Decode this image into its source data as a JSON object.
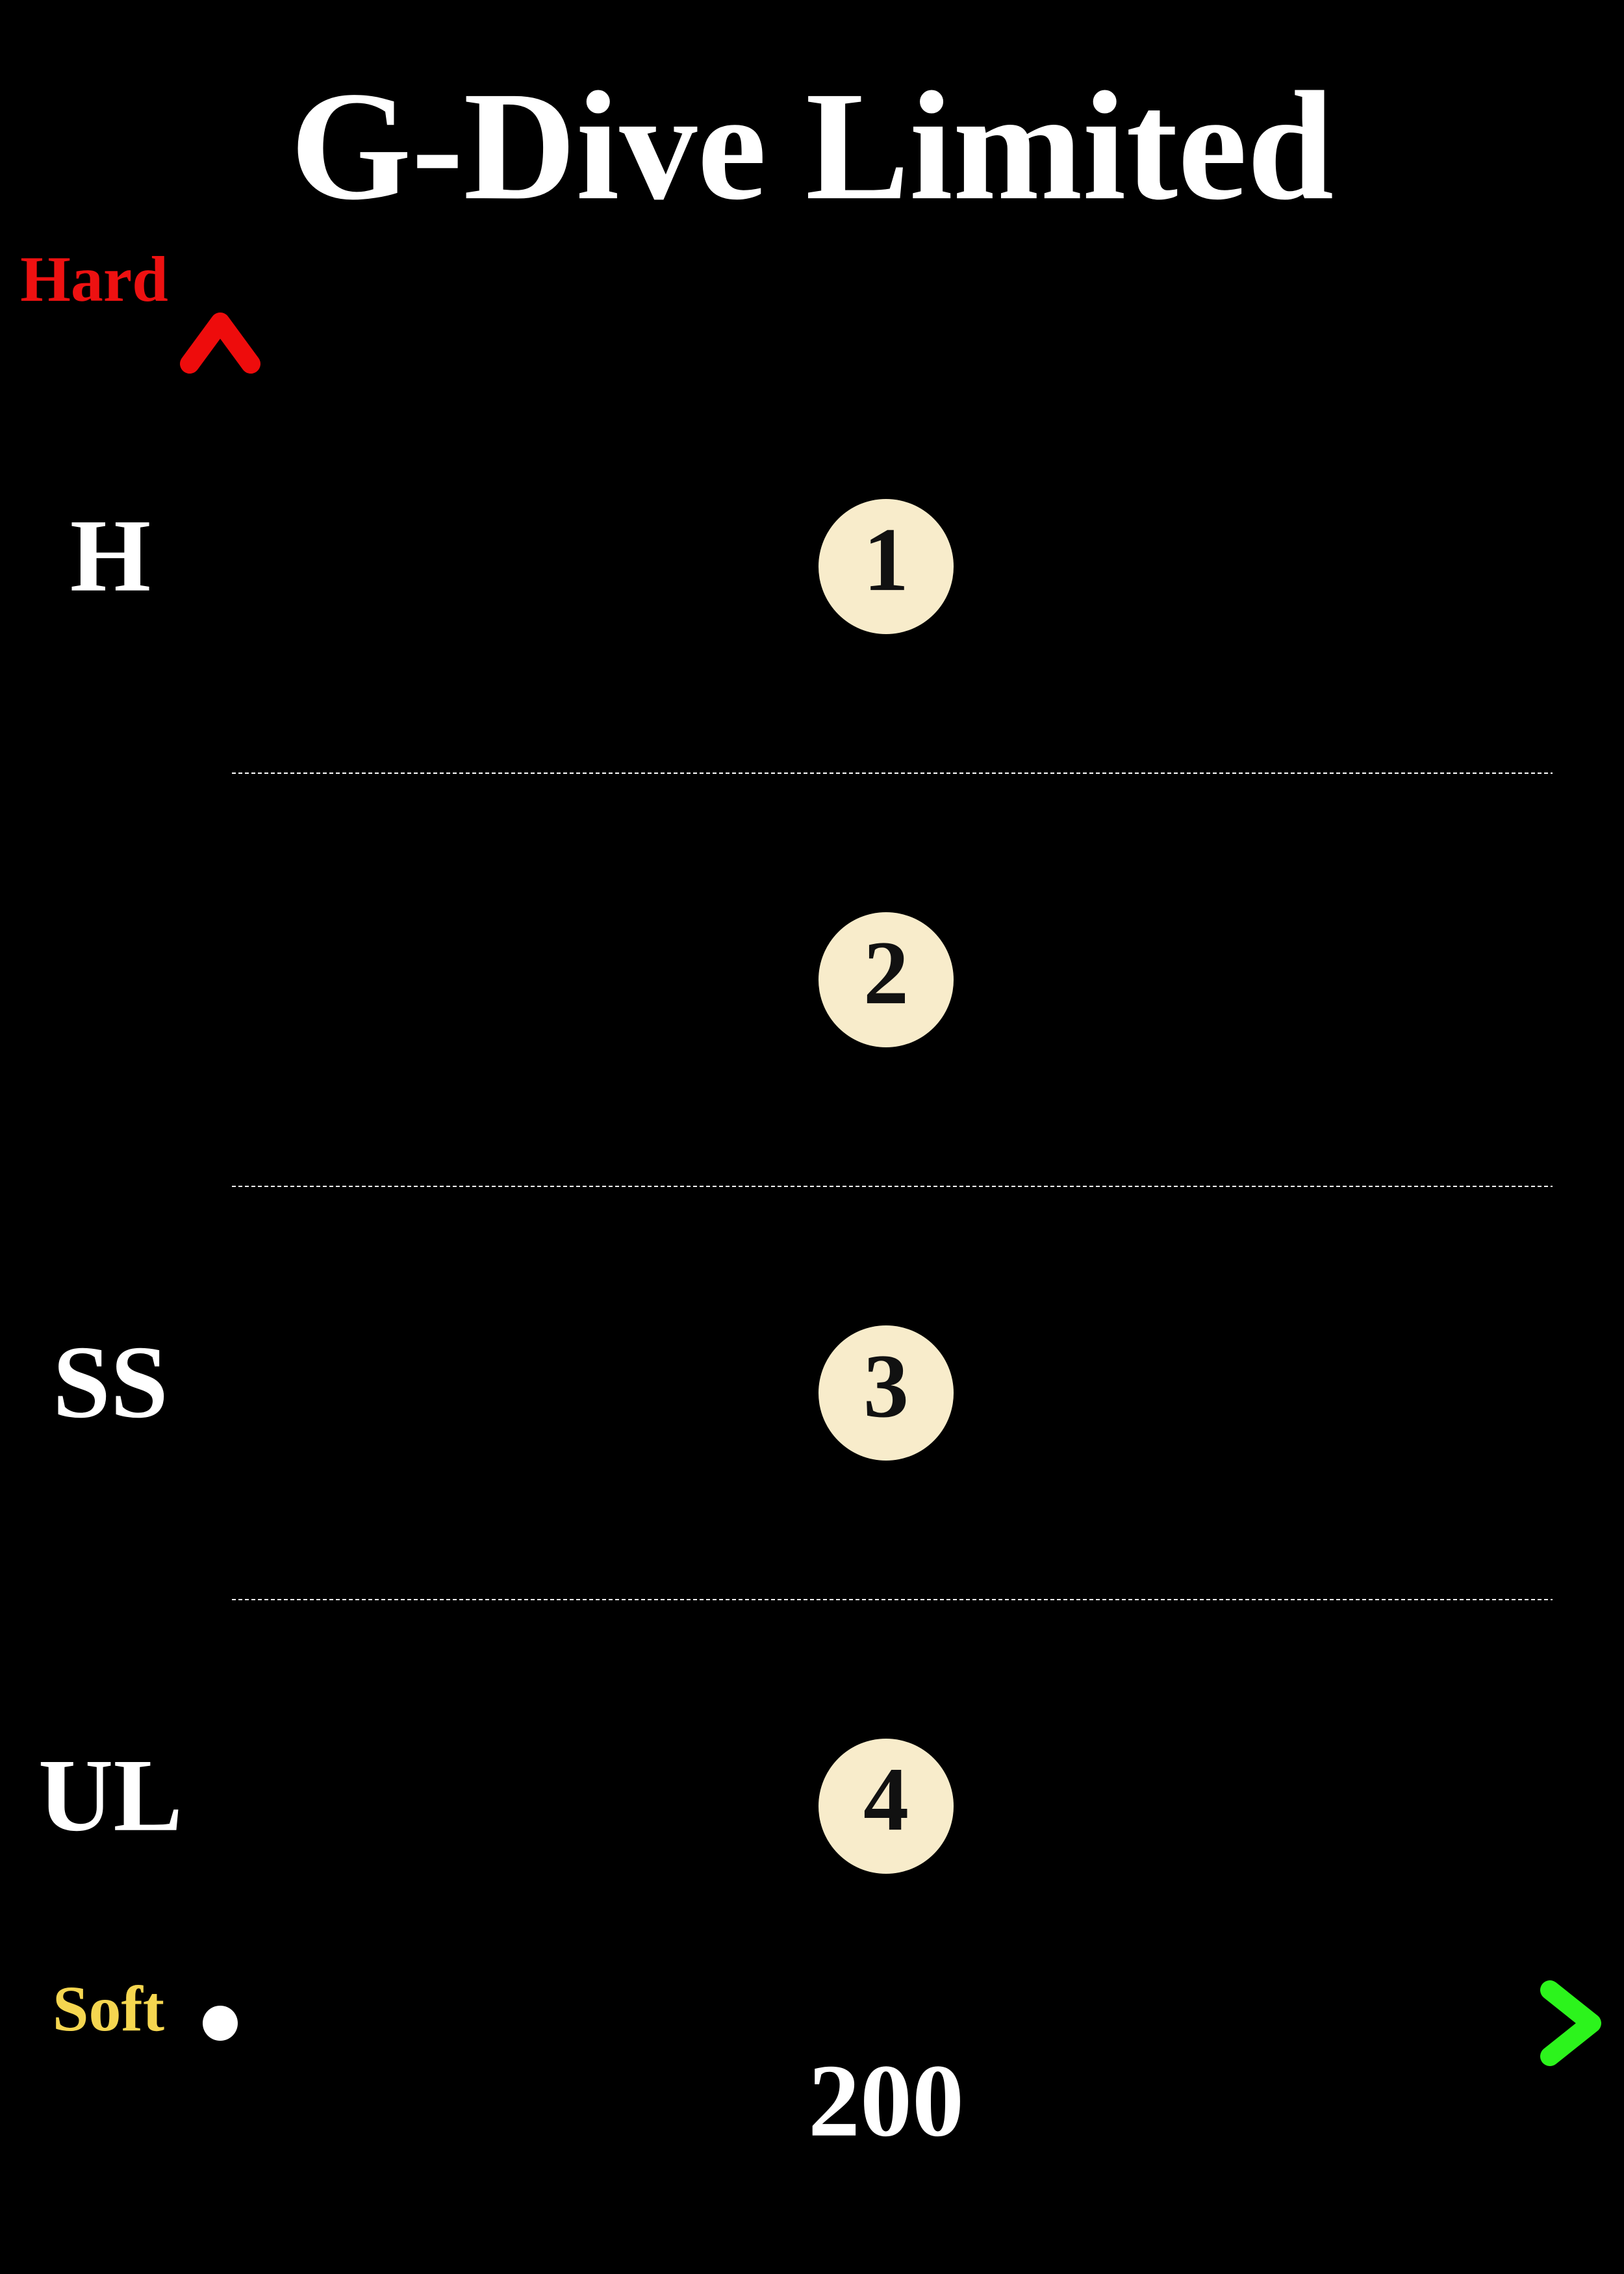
{
  "title": "G-Dive Limited",
  "y_axis": {
    "top_label": "Hard",
    "bottom_label": "Soft"
  },
  "x_axis": {
    "label": "200"
  },
  "rows": [
    {
      "label": "H",
      "number": "1"
    },
    {
      "number": "2"
    },
    {
      "label": "SS",
      "number": "3"
    },
    {
      "label": "UL",
      "number": "4"
    }
  ]
}
